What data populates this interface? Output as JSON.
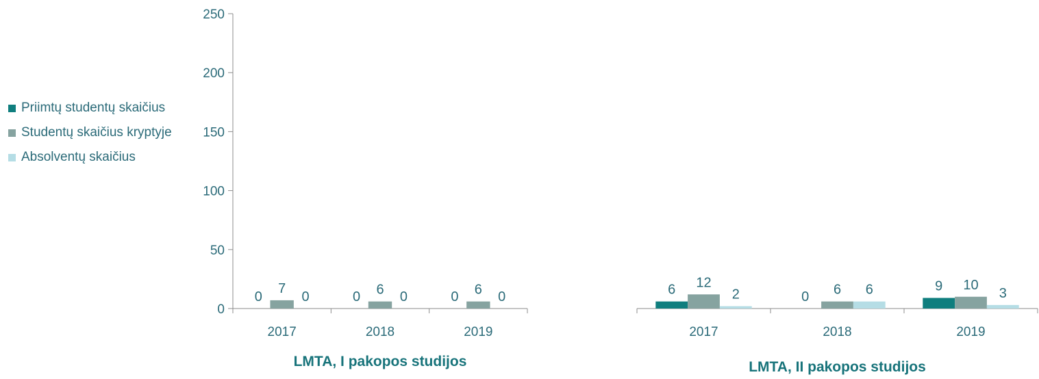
{
  "chart_data": [
    {
      "type": "bar",
      "title": "LMTA, I pakopos studijos",
      "categories": [
        "2017",
        "2018",
        "2019"
      ],
      "ylim": [
        0,
        250
      ],
      "yticks": [
        0,
        50,
        100,
        150,
        200,
        250
      ],
      "series": [
        {
          "name": "Priimtų studentų skaičius",
          "color": "#0f7e7e",
          "values": [
            0,
            0,
            0
          ]
        },
        {
          "name": "Studentų skaičius kryptyje",
          "color": "#86a3a0",
          "values": [
            7,
            6,
            6
          ]
        },
        {
          "name": "Absolventų skaičius",
          "color": "#b5dde5",
          "values": [
            0,
            0,
            0
          ]
        }
      ],
      "grid": false,
      "legend": "left"
    },
    {
      "type": "bar",
      "title": "LMTA, II pakopos studijos",
      "categories": [
        "2017",
        "2018",
        "2019"
      ],
      "ylim": [
        0,
        250
      ],
      "series": [
        {
          "name": "Priimtų studentų skaičius",
          "color": "#0f7e7e",
          "values": [
            6,
            0,
            9
          ]
        },
        {
          "name": "Studentų skaičius kryptyje",
          "color": "#86a3a0",
          "values": [
            12,
            6,
            10
          ]
        },
        {
          "name": "Absolventų skaičius",
          "color": "#b5dde5",
          "values": [
            2,
            6,
            3
          ]
        }
      ],
      "grid": false,
      "legend": "left"
    }
  ],
  "legend": {
    "items": [
      {
        "label": "Priimtų studentų skaičius",
        "color": "#0f7e7e"
      },
      {
        "label": "Studentų skaičius kryptyje",
        "color": "#86a3a0"
      },
      {
        "label": "Absolventų skaičius",
        "color": "#b5dde5"
      }
    ]
  },
  "colors": {
    "text": "#2a6a78",
    "axis": "#8c8c8c",
    "title": "#17737a"
  }
}
